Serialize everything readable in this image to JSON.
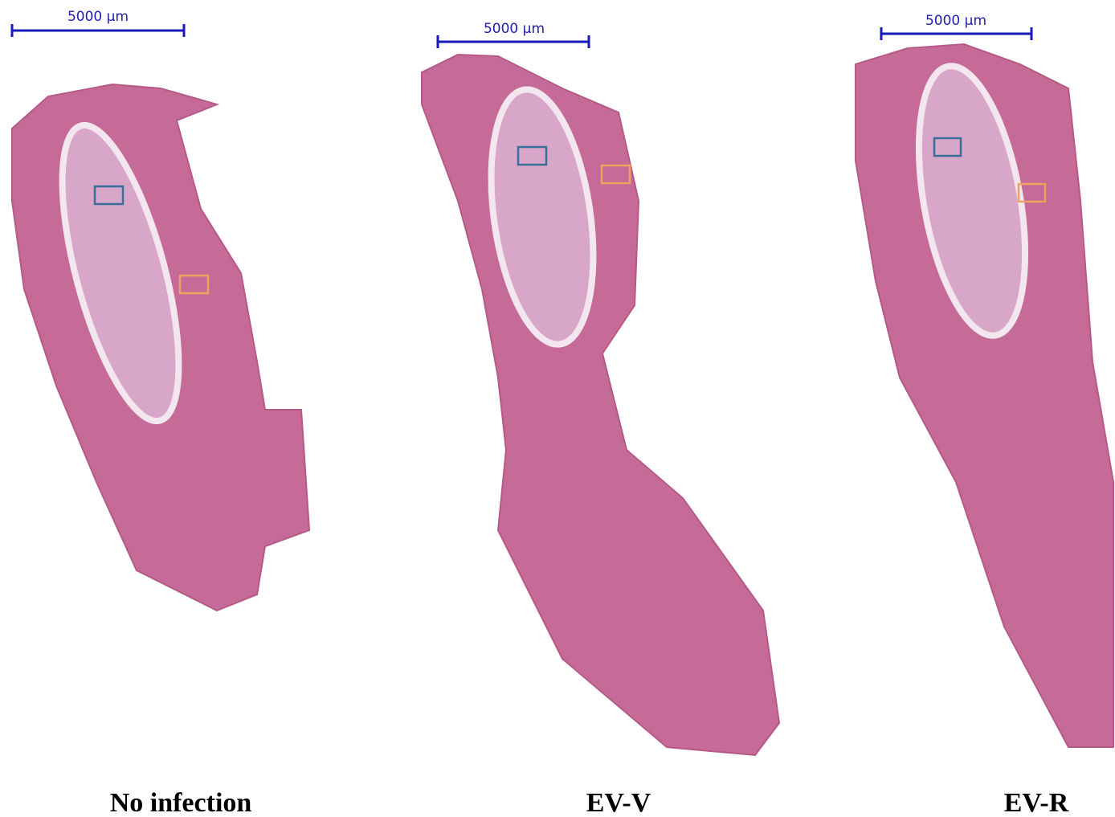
{
  "panels": [
    {
      "scale_bar": "5000 µm",
      "label": "No infection"
    },
    {
      "scale_bar": "5000 µm",
      "label": "EV-V"
    },
    {
      "scale_bar": "5000 µm",
      "label": "EV-R"
    }
  ]
}
